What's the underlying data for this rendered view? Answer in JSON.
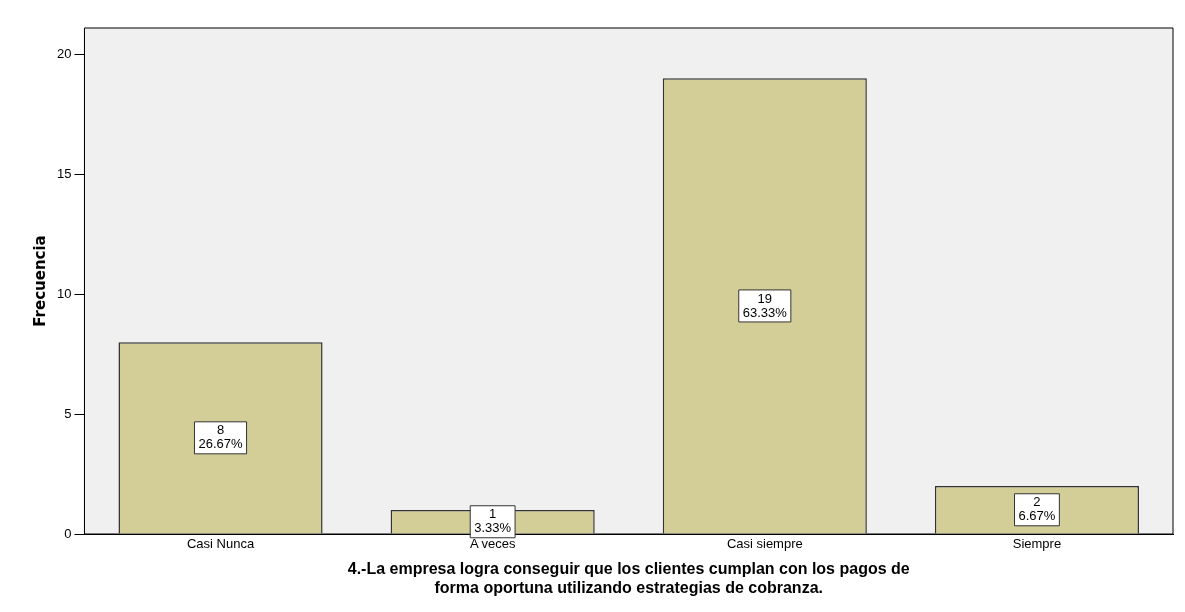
{
  "chart_data": {
    "type": "bar",
    "xlabel": "4.-La empresa logra conseguir que los clientes cumplan con los pagos de forma oportuna utilizando estrategias de cobranza.",
    "ylabel": "Frecuencia",
    "categories": [
      "Casi Nunca",
      "A veces",
      "Casi siempre",
      "Siempre"
    ],
    "values": [
      8,
      1,
      19,
      2
    ],
    "color": "#d3ce97",
    "value_labels": [
      "8\n26.67%",
      "1\n3.33%",
      "19\n63.33%",
      "2\n6.67%"
    ],
    "ylim": [
      0,
      21.1
    ],
    "yticks": [
      0,
      5,
      10,
      15,
      20
    ],
    "grid": false,
    "legend": false
  }
}
